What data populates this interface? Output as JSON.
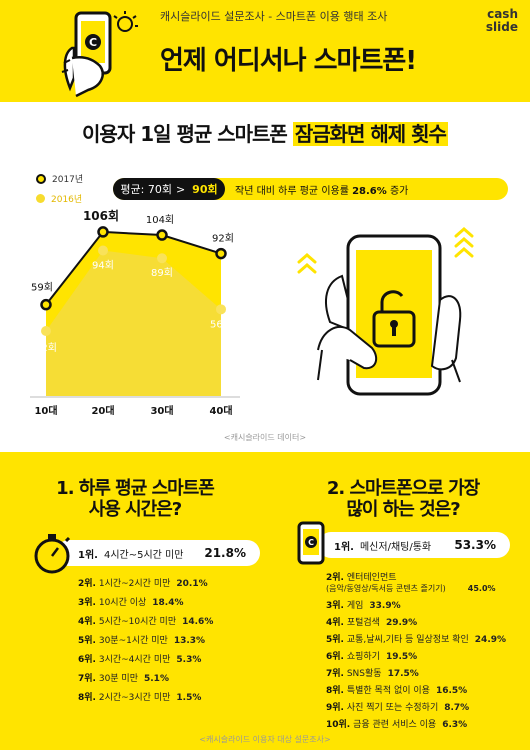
{
  "header": {
    "subtitle": "캐시슬라이드 설문조사 - 스마트폰 이용 행태 조사",
    "title": "언제 어디서나 스마트폰!",
    "brand_top": "cash",
    "brand_bottom": "slide",
    "phone_letter": "C"
  },
  "section1": {
    "title_plain": "이용자 1일 평균 스마트폰 ",
    "title_highlight": "잠금화면 해제 횟수",
    "legend": [
      "2017년",
      "2016년"
    ],
    "avg_label": "평균: 70회",
    "avg_arrow": ">",
    "avg_new": "90회",
    "avg_msg_pre": "작년 대비 하루 평균 이용률 ",
    "avg_msg_bold": "28.6%",
    "avg_msg_post": " 증가",
    "source": "<캐시슬라이드 데이터>"
  },
  "chart_data": {
    "type": "area",
    "categories": [
      "10대",
      "20대",
      "30대",
      "40대"
    ],
    "series": [
      {
        "name": "2017년",
        "values": [
          59,
          106,
          104,
          92
        ],
        "labels": [
          "59회",
          "106회",
          "104회",
          "92회"
        ],
        "color": "#ffe400"
      },
      {
        "name": "2016년",
        "values": [
          42,
          94,
          89,
          56
        ],
        "labels": [
          "42회",
          "94회",
          "89회",
          "56회"
        ],
        "color": "#f5dc3b"
      }
    ],
    "ylim": [
      0,
      115
    ],
    "grid": false,
    "title": "이용자 1일 평균 스마트폰 잠금화면 해제 횟수"
  },
  "section2": {
    "title_line1": "1. 하루 평균 스마트폰",
    "title_line2": "사용 시간은?",
    "top": {
      "rank": "1위.",
      "label": "4시간~5시간 미만",
      "pct": "21.8%"
    },
    "items": [
      {
        "rank": "2위.",
        "label": "1시간~2시간 미만",
        "pct": "20.1%"
      },
      {
        "rank": "3위.",
        "label": "10시간 이상",
        "pct": "18.4%"
      },
      {
        "rank": "4위.",
        "label": "5시간~10시간 미만",
        "pct": "14.6%"
      },
      {
        "rank": "5위.",
        "label": "30분~1시간 미만",
        "pct": "13.3%"
      },
      {
        "rank": "6위.",
        "label": "3시간~4시간 미만",
        "pct": "5.3%"
      },
      {
        "rank": "7위.",
        "label": "30분 미만",
        "pct": "5.1%"
      },
      {
        "rank": "8위.",
        "label": "2시간~3시간 미만",
        "pct": "1.5%"
      }
    ]
  },
  "section3": {
    "title_line1": "2. 스마트폰으로 가장",
    "title_line2": "많이 하는 것은?",
    "top": {
      "rank": "1위.",
      "label": "메신저/채팅/통화",
      "pct": "53.3%"
    },
    "item2": {
      "rank": "2위.",
      "label_line1": "엔터테인먼트",
      "label_line2": "(음악/동영상/독서등 콘텐츠 즐기기)",
      "pct": "45.0%"
    },
    "items": [
      {
        "rank": "3위.",
        "label": "게임",
        "pct": "33.9%"
      },
      {
        "rank": "4위.",
        "label": "포털검색",
        "pct": "29.9%"
      },
      {
        "rank": "5위.",
        "label": "교통,날씨,기타 등 일상정보 확인",
        "pct": "24.9%"
      },
      {
        "rank": "6위.",
        "label": "쇼핑하기",
        "pct": "19.5%"
      },
      {
        "rank": "7위.",
        "label": "SNS활동",
        "pct": "17.5%"
      },
      {
        "rank": "8위.",
        "label": "특별한 목적 없이 이용",
        "pct": "16.5%"
      },
      {
        "rank": "9위.",
        "label": "사진 찍기 또는 수정하기",
        "pct": "8.7%"
      },
      {
        "rank": "10위.",
        "label": "금융 관련 서비스 이용",
        "pct": "6.3%"
      }
    ]
  },
  "footer": {
    "source": "<캐시슬라이드 이용자 대상 설문조사>"
  },
  "colors": {
    "accent": "#ffe400",
    "accent_light": "#f5dc3b",
    "dark": "#111111"
  }
}
